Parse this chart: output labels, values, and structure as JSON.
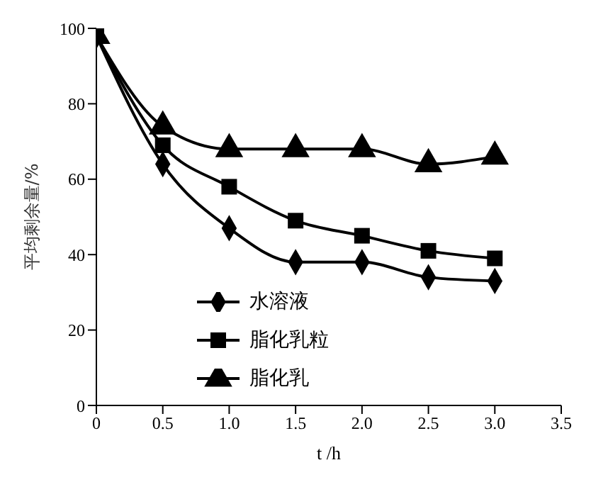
{
  "chart_data": {
    "type": "line",
    "xlabel": "t /h",
    "ylabel": "平均剩余量/%",
    "x": [
      0,
      0.5,
      1.0,
      1.5,
      2.0,
      2.5,
      3.0
    ],
    "xlim": [
      0,
      3.5
    ],
    "xticks": [
      0,
      {
        "value": 0.5,
        "label": "0.5"
      },
      {
        "value": 1,
        "label": "1.0"
      },
      {
        "value": 1.5,
        "label": "1.5"
      },
      {
        "value": 2,
        "label": "2.0"
      },
      {
        "value": 2.5,
        "label": "2.5"
      },
      {
        "value": 3,
        "label": "3.0"
      },
      {
        "value": 3.5,
        "label": "3.5"
      }
    ],
    "ylim": [
      0,
      100
    ],
    "yticks": [
      0,
      20,
      40,
      60,
      80,
      100
    ],
    "grid": false,
    "legend": "bottom left",
    "series": [
      {
        "name": "水溶液",
        "color": "#000000",
        "marker": "diamond",
        "values": [
          98,
          64,
          47,
          38,
          38,
          34,
          33
        ]
      },
      {
        "name": "脂化乳粒",
        "color": "#000000",
        "marker": "square",
        "values": [
          98,
          69,
          58,
          49,
          45,
          41,
          39
        ]
      },
      {
        "name": "脂化乳",
        "color": "#000000",
        "marker": "triangle",
        "values": [
          98,
          74,
          68,
          68,
          68,
          64,
          66
        ]
      }
    ]
  }
}
